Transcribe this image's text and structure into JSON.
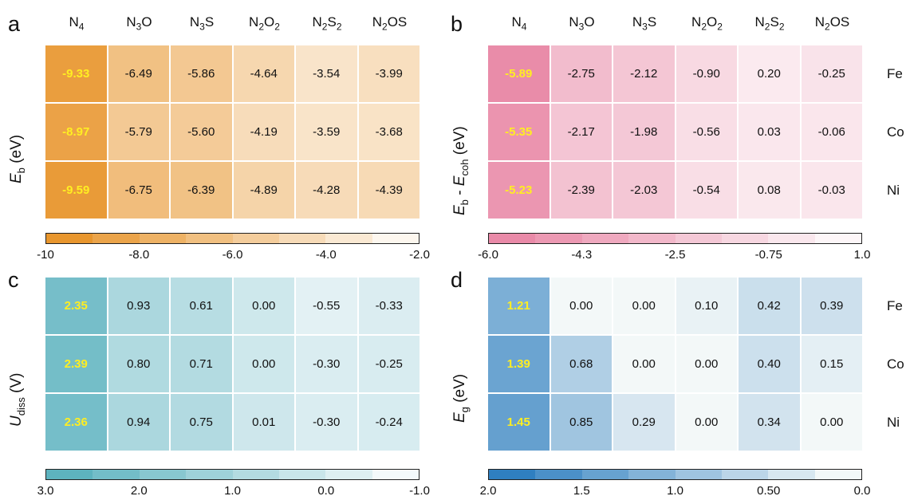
{
  "columns": [
    {
      "base": "N",
      "sub1": "4",
      "mid": "",
      "sub2": ""
    },
    {
      "base": "N",
      "sub1": "3",
      "mid": "O",
      "sub2": ""
    },
    {
      "base": "N",
      "sub1": "3",
      "mid": "S",
      "sub2": ""
    },
    {
      "base": "N",
      "sub1": "2",
      "mid": "O",
      "sub2": "2"
    },
    {
      "base": "N",
      "sub1": "2",
      "mid": "S",
      "sub2": "2"
    },
    {
      "base": "N",
      "sub1": "2",
      "mid": "OS",
      "sub2": ""
    }
  ],
  "rows": [
    "Fe",
    "Co",
    "Ni"
  ],
  "chart_data": [
    {
      "type": "heatmap",
      "panel": "a",
      "ylabel": {
        "main": "E",
        "sub": "b",
        "rest": " (eV)"
      },
      "values": [
        [
          -9.33,
          -6.49,
          -5.86,
          -4.64,
          -3.54,
          -3.99
        ],
        [
          -8.97,
          -5.79,
          -5.6,
          -4.19,
          -3.59,
          -3.68
        ],
        [
          -9.59,
          -6.75,
          -6.39,
          -4.89,
          -4.28,
          -4.39
        ]
      ],
      "labels": [
        [
          "-9.33",
          "-6.49",
          "-5.86",
          "-4.64",
          "-3.54",
          "-3.99"
        ],
        [
          "-8.97",
          "-5.79",
          "-5.60",
          "-4.19",
          "-3.59",
          "-3.68"
        ],
        [
          "-9.59",
          "-6.75",
          "-6.39",
          "-4.89",
          "-4.28",
          "-4.39"
        ]
      ],
      "vmin": -10,
      "vmax": -2,
      "color_strong": "#e8962e",
      "color_weak": "#fdf7ef",
      "colorbar_ticks": [
        "-10",
        "-8.0",
        "-6.0",
        "-4.0",
        "-2.0"
      ],
      "show_row_labels": false
    },
    {
      "type": "heatmap",
      "panel": "b",
      "ylabel": {
        "main": "E",
        "sub": "b",
        "rest": " - ",
        "main2": "E",
        "sub2": "coh",
        "rest2": " (eV)"
      },
      "values": [
        [
          -5.89,
          -2.75,
          -2.12,
          -0.9,
          0.2,
          -0.25
        ],
        [
          -5.35,
          -2.17,
          -1.98,
          -0.56,
          0.03,
          -0.06
        ],
        [
          -5.23,
          -2.39,
          -2.03,
          -0.54,
          0.08,
          -0.03
        ]
      ],
      "labels": [
        [
          "-5.89",
          "-2.75",
          "-2.12",
          "-0.90",
          "0.20",
          "-0.25"
        ],
        [
          "-5.35",
          "-2.17",
          "-1.98",
          "-0.56",
          "0.03",
          "-0.06"
        ],
        [
          "-5.23",
          "-2.39",
          "-2.03",
          "-0.54",
          "0.08",
          "-0.03"
        ]
      ],
      "vmin": -6.0,
      "vmax": 1.0,
      "color_strong": "#e98aa8",
      "color_weak": "#fdf6f8",
      "colorbar_ticks": [
        "-6.0",
        "-4.3",
        "-2.5",
        "-0.75",
        "1.0"
      ],
      "show_row_labels": true
    },
    {
      "type": "heatmap",
      "panel": "c",
      "ylabel": {
        "main": "U",
        "sub": "diss",
        "rest": " (V)"
      },
      "values": [
        [
          2.35,
          0.93,
          0.61,
          0.0,
          -0.55,
          -0.33
        ],
        [
          2.39,
          0.8,
          0.71,
          0.0,
          -0.3,
          -0.25
        ],
        [
          2.36,
          0.94,
          0.75,
          0.01,
          -0.3,
          -0.24
        ]
      ],
      "labels": [
        [
          "2.35",
          "0.93",
          "0.61",
          "0.00",
          "-0.55",
          "-0.33"
        ],
        [
          "2.39",
          "0.80",
          "0.71",
          "0.00",
          "-0.30",
          "-0.25"
        ],
        [
          "2.36",
          "0.94",
          "0.75",
          "0.01",
          "-0.30",
          "-0.24"
        ]
      ],
      "vmin": -1.0,
      "vmax": 3.0,
      "reverse": true,
      "color_strong": "#5db3bf",
      "color_weak": "#f4f9fb",
      "colorbar_ticks": [
        "3.0",
        "2.0",
        "1.0",
        "0.0",
        "-1.0"
      ],
      "show_row_labels": false
    },
    {
      "type": "heatmap",
      "panel": "d",
      "ylabel": {
        "main": "E",
        "sub": "g",
        "rest": " (eV)"
      },
      "values": [
        [
          1.21,
          0.0,
          0.0,
          0.1,
          0.42,
          0.39
        ],
        [
          1.39,
          0.68,
          0.0,
          0.0,
          0.4,
          0.15
        ],
        [
          1.45,
          0.85,
          0.29,
          0.0,
          0.34,
          0.0
        ]
      ],
      "labels": [
        [
          "1.21",
          "0.00",
          "0.00",
          "0.10",
          "0.42",
          "0.39"
        ],
        [
          "1.39",
          "0.68",
          "0.00",
          "0.00",
          "0.40",
          "0.15"
        ],
        [
          "1.45",
          "0.85",
          "0.29",
          "0.00",
          "0.34",
          "0.00"
        ]
      ],
      "vmin": 0.0,
      "vmax": 2.0,
      "reverse": true,
      "color_strong": "#2f7fc0",
      "color_weak": "#f3f8f8",
      "colorbar_ticks": [
        "2.0",
        "1.5",
        "1.0",
        "0.50",
        "0.0"
      ],
      "show_row_labels": true
    }
  ]
}
